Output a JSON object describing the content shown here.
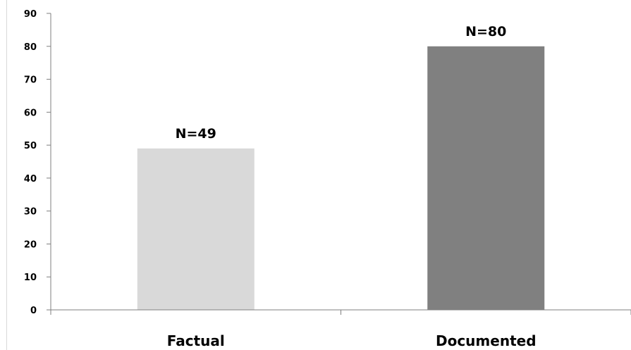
{
  "chart_data": {
    "type": "bar",
    "categories": [
      "Factual",
      "Documented"
    ],
    "values": [
      49,
      80
    ],
    "data_labels": [
      "N=49",
      "N=80"
    ],
    "bar_colors": [
      "#d9d9d9",
      "#808080"
    ],
    "title": "",
    "xlabel": "",
    "ylabel": "",
    "ylim": [
      0,
      90
    ],
    "yticks": [
      0,
      10,
      20,
      30,
      40,
      50,
      60,
      70,
      80,
      90
    ],
    "grid": false,
    "legend": "none"
  },
  "colors": {
    "axis": "#7f7f7f",
    "text": "#000000"
  }
}
